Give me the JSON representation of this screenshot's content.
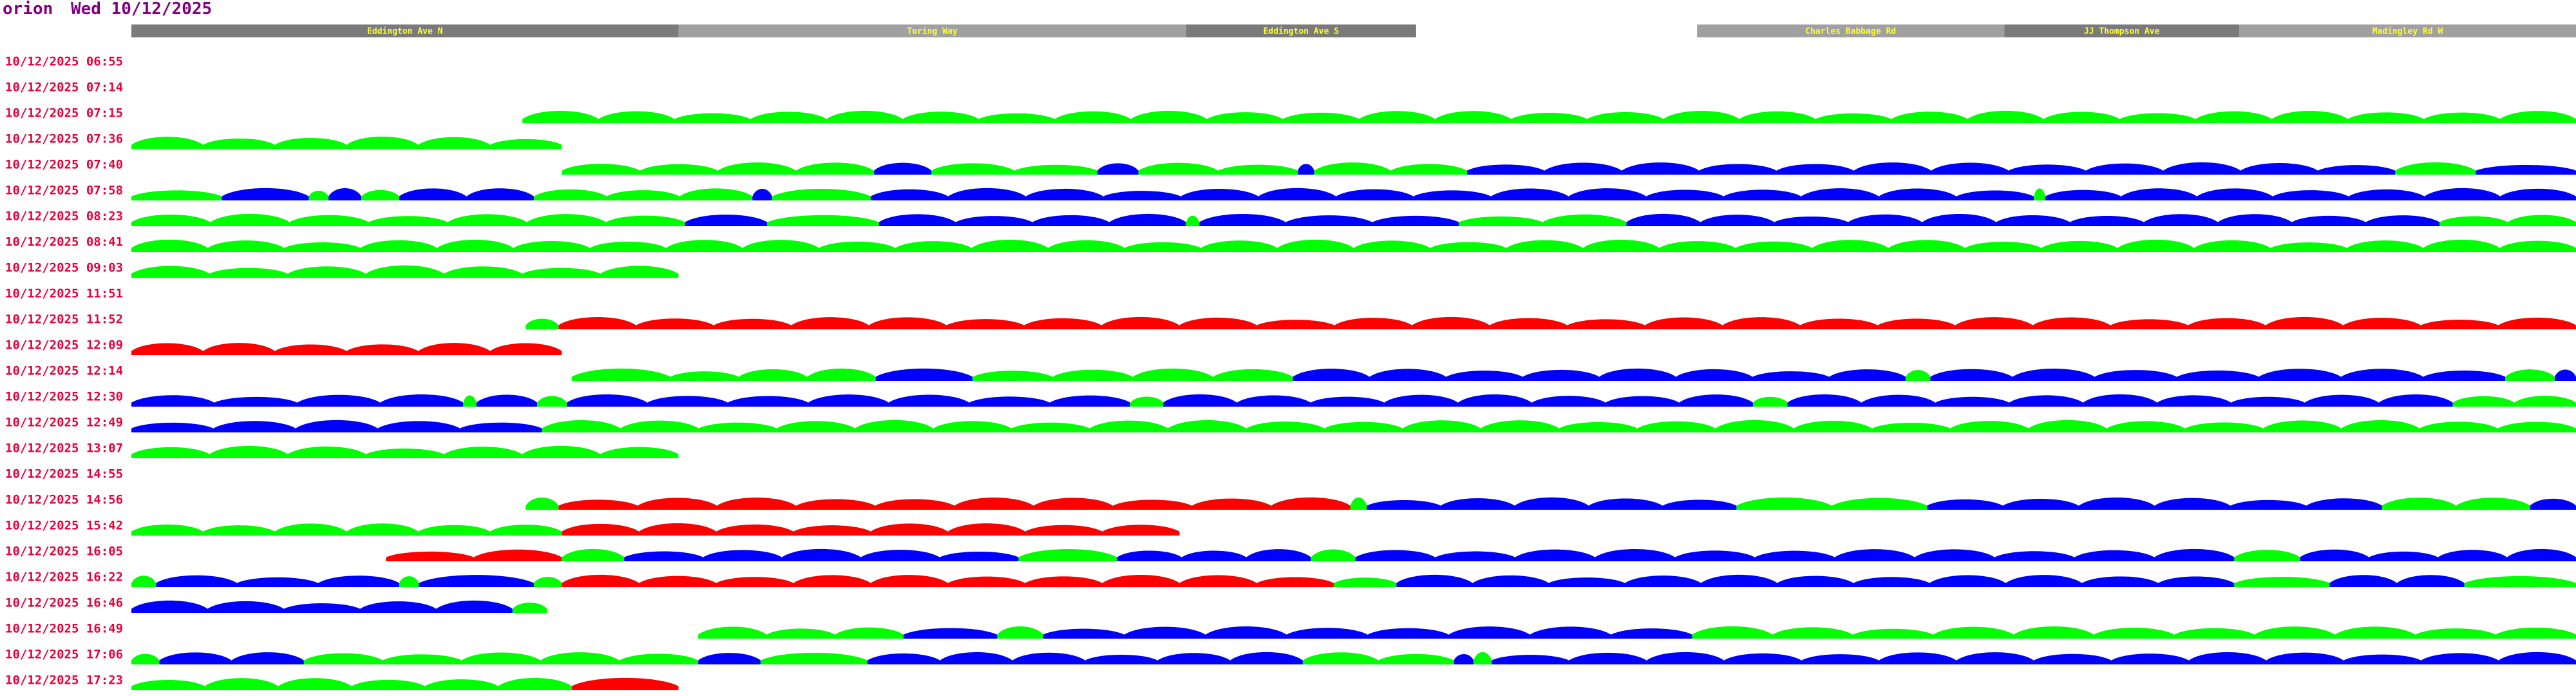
{
  "header": {
    "host": "orion",
    "date": "Wed 10/12/2025"
  },
  "sections": [
    {
      "name": "Eddington Ave N",
      "from": 0,
      "to": 333,
      "color": "#7a7a7a"
    },
    {
      "name": "Turing Way",
      "from": 333,
      "to": 642,
      "color": "#a0a0a0"
    },
    {
      "name": "Eddington Ave S",
      "from": 642,
      "to": 782,
      "color": "#7a7a7a"
    },
    {
      "name": "Charles Babbage Rd",
      "from": 953,
      "to": 1140,
      "color": "#a0a0a0"
    },
    {
      "name": "JJ Thompson Ave",
      "from": 1140,
      "to": 1283,
      "color": "#7a7a7a"
    },
    {
      "name": "Madingley Rd W",
      "from": 1283,
      "to": 1488,
      "color": "#a0a0a0"
    }
  ],
  "rows": [
    {
      "time": "10/12/2025 06:55",
      "segments": []
    },
    {
      "time": "10/12/2025 07:14",
      "segments": []
    },
    {
      "time": "10/12/2025 07:15",
      "segments": [
        {
          "from": 238,
          "to": 1488,
          "color": "#00ff00"
        }
      ]
    },
    {
      "time": "10/12/2025 07:36",
      "segments": [
        {
          "from": 0,
          "to": 262,
          "color": "#00ff00"
        }
      ]
    },
    {
      "time": "10/12/2025 07:40",
      "segments": [
        {
          "from": 262,
          "to": 452,
          "color": "#00ff00"
        },
        {
          "from": 452,
          "to": 487,
          "color": "#0000ff"
        },
        {
          "from": 487,
          "to": 588,
          "color": "#00ff00"
        },
        {
          "from": 588,
          "to": 613,
          "color": "#0000ff"
        },
        {
          "from": 613,
          "to": 710,
          "color": "#00ff00"
        },
        {
          "from": 710,
          "to": 720,
          "color": "#0000ff"
        },
        {
          "from": 720,
          "to": 813,
          "color": "#00ff00"
        },
        {
          "from": 813,
          "to": 1378,
          "color": "#0000ff"
        },
        {
          "from": 1378,
          "to": 1427,
          "color": "#00ff00"
        },
        {
          "from": 1427,
          "to": 1488,
          "color": "#0000ff"
        }
      ]
    },
    {
      "time": "10/12/2025 07:58",
      "segments": [
        {
          "from": 0,
          "to": 55,
          "color": "#00ff00"
        },
        {
          "from": 55,
          "to": 108,
          "color": "#0000ff"
        },
        {
          "from": 108,
          "to": 120,
          "color": "#00ff00"
        },
        {
          "from": 120,
          "to": 140,
          "color": "#0000ff"
        },
        {
          "from": 140,
          "to": 163,
          "color": "#00ff00"
        },
        {
          "from": 163,
          "to": 245,
          "color": "#0000ff"
        },
        {
          "from": 245,
          "to": 378,
          "color": "#00ff00"
        },
        {
          "from": 378,
          "to": 390,
          "color": "#0000ff"
        },
        {
          "from": 390,
          "to": 450,
          "color": "#00ff00"
        },
        {
          "from": 450,
          "to": 1158,
          "color": "#0000ff"
        },
        {
          "from": 1158,
          "to": 1165,
          "color": "#00ff00"
        },
        {
          "from": 1165,
          "to": 1488,
          "color": "#0000ff"
        }
      ]
    },
    {
      "time": "10/12/2025 08:23",
      "segments": [
        {
          "from": 0,
          "to": 337,
          "color": "#00ff00"
        },
        {
          "from": 337,
          "to": 387,
          "color": "#0000ff"
        },
        {
          "from": 387,
          "to": 455,
          "color": "#00ff00"
        },
        {
          "from": 455,
          "to": 642,
          "color": "#0000ff"
        },
        {
          "from": 642,
          "to": 650,
          "color": "#00ff00"
        },
        {
          "from": 650,
          "to": 808,
          "color": "#0000ff"
        },
        {
          "from": 808,
          "to": 910,
          "color": "#00ff00"
        },
        {
          "from": 910,
          "to": 1405,
          "color": "#0000ff"
        },
        {
          "from": 1405,
          "to": 1488,
          "color": "#00ff00"
        }
      ]
    },
    {
      "time": "10/12/2025 08:41",
      "segments": [
        {
          "from": 0,
          "to": 1488,
          "color": "#00ff00"
        }
      ]
    },
    {
      "time": "10/12/2025 09:03",
      "segments": [
        {
          "from": 0,
          "to": 333,
          "color": "#00ff00"
        }
      ]
    },
    {
      "time": "10/12/2025 11:51",
      "segments": []
    },
    {
      "time": "10/12/2025 11:52",
      "segments": [
        {
          "from": 240,
          "to": 260,
          "color": "#00ff00"
        },
        {
          "from": 260,
          "to": 1488,
          "color": "#ff0000"
        }
      ]
    },
    {
      "time": "10/12/2025 12:09",
      "segments": [
        {
          "from": 0,
          "to": 262,
          "color": "#ff0000"
        }
      ]
    },
    {
      "time": "10/12/2025 12:14",
      "segments": [
        {
          "from": 268,
          "to": 328,
          "color": "#00ff00"
        },
        {
          "from": 328,
          "to": 453,
          "color": "#00ff00"
        },
        {
          "from": 453,
          "to": 512,
          "color": "#0000ff"
        },
        {
          "from": 512,
          "to": 707,
          "color": "#00ff00"
        },
        {
          "from": 707,
          "to": 1080,
          "color": "#0000ff"
        },
        {
          "from": 1080,
          "to": 1095,
          "color": "#00ff00"
        },
        {
          "from": 1095,
          "to": 1445,
          "color": "#0000ff"
        },
        {
          "from": 1445,
          "to": 1475,
          "color": "#00ff00"
        },
        {
          "from": 1475,
          "to": 1488,
          "color": "#0000ff"
        }
      ]
    },
    {
      "time": "10/12/2025 12:30",
      "segments": [
        {
          "from": 0,
          "to": 202,
          "color": "#0000ff"
        },
        {
          "from": 202,
          "to": 210,
          "color": "#00ff00"
        },
        {
          "from": 210,
          "to": 247,
          "color": "#0000ff"
        },
        {
          "from": 247,
          "to": 265,
          "color": "#00ff00"
        },
        {
          "from": 265,
          "to": 608,
          "color": "#0000ff"
        },
        {
          "from": 608,
          "to": 628,
          "color": "#00ff00"
        },
        {
          "from": 628,
          "to": 987,
          "color": "#0000ff"
        },
        {
          "from": 987,
          "to": 1008,
          "color": "#00ff00"
        },
        {
          "from": 1008,
          "to": 1413,
          "color": "#0000ff"
        },
        {
          "from": 1413,
          "to": 1488,
          "color": "#00ff00"
        }
      ]
    },
    {
      "time": "10/12/2025 12:49",
      "segments": [
        {
          "from": 0,
          "to": 250,
          "color": "#0000ff"
        },
        {
          "from": 250,
          "to": 1488,
          "color": "#00ff00"
        }
      ]
    },
    {
      "time": "10/12/2025 13:07",
      "segments": [
        {
          "from": 0,
          "to": 333,
          "color": "#00ff00"
        }
      ]
    },
    {
      "time": "10/12/2025 14:55",
      "segments": []
    },
    {
      "time": "10/12/2025 14:56",
      "segments": [
        {
          "from": 240,
          "to": 260,
          "color": "#00ff00"
        },
        {
          "from": 260,
          "to": 742,
          "color": "#ff0000"
        },
        {
          "from": 742,
          "to": 752,
          "color": "#00ff00"
        },
        {
          "from": 752,
          "to": 977,
          "color": "#0000ff"
        },
        {
          "from": 977,
          "to": 1093,
          "color": "#00ff00"
        },
        {
          "from": 1093,
          "to": 1370,
          "color": "#0000ff"
        },
        {
          "from": 1370,
          "to": 1460,
          "color": "#00ff00"
        },
        {
          "from": 1460,
          "to": 1488,
          "color": "#0000ff"
        }
      ]
    },
    {
      "time": "10/12/2025 15:42",
      "segments": [
        {
          "from": 0,
          "to": 262,
          "color": "#00ff00"
        },
        {
          "from": 262,
          "to": 638,
          "color": "#ff0000"
        }
      ]
    },
    {
      "time": "10/12/2025 16:05",
      "segments": [
        {
          "from": 155,
          "to": 262,
          "color": "#ff0000"
        },
        {
          "from": 262,
          "to": 300,
          "color": "#00ff00"
        },
        {
          "from": 300,
          "to": 540,
          "color": "#0000ff"
        },
        {
          "from": 540,
          "to": 600,
          "color": "#00ff00"
        },
        {
          "from": 600,
          "to": 718,
          "color": "#0000ff"
        },
        {
          "from": 718,
          "to": 745,
          "color": "#00ff00"
        },
        {
          "from": 745,
          "to": 1280,
          "color": "#0000ff"
        },
        {
          "from": 1280,
          "to": 1320,
          "color": "#00ff00"
        },
        {
          "from": 1320,
          "to": 1488,
          "color": "#0000ff"
        }
      ]
    },
    {
      "time": "10/12/2025 16:22",
      "segments": [
        {
          "from": 0,
          "to": 15,
          "color": "#00ff00"
        },
        {
          "from": 15,
          "to": 163,
          "color": "#0000ff"
        },
        {
          "from": 163,
          "to": 175,
          "color": "#00ff00"
        },
        {
          "from": 175,
          "to": 245,
          "color": "#0000ff"
        },
        {
          "from": 245,
          "to": 262,
          "color": "#00ff00"
        },
        {
          "from": 262,
          "to": 732,
          "color": "#ff0000"
        },
        {
          "from": 732,
          "to": 770,
          "color": "#00ff00"
        },
        {
          "from": 770,
          "to": 1280,
          "color": "#0000ff"
        },
        {
          "from": 1280,
          "to": 1338,
          "color": "#00ff00"
        },
        {
          "from": 1338,
          "to": 1420,
          "color": "#0000ff"
        },
        {
          "from": 1420,
          "to": 1488,
          "color": "#00ff00"
        }
      ]
    },
    {
      "time": "10/12/2025 16:46",
      "segments": [
        {
          "from": 0,
          "to": 232,
          "color": "#0000ff"
        },
        {
          "from": 232,
          "to": 253,
          "color": "#00ff00"
        }
      ]
    },
    {
      "time": "10/12/2025 16:49",
      "segments": [
        {
          "from": 345,
          "to": 470,
          "color": "#00ff00"
        },
        {
          "from": 470,
          "to": 527,
          "color": "#0000ff"
        },
        {
          "from": 527,
          "to": 555,
          "color": "#00ff00"
        },
        {
          "from": 555,
          "to": 950,
          "color": "#0000ff"
        },
        {
          "from": 950,
          "to": 1488,
          "color": "#00ff00"
        }
      ]
    },
    {
      "time": "10/12/2025 17:06",
      "segments": [
        {
          "from": 0,
          "to": 17,
          "color": "#00ff00"
        },
        {
          "from": 17,
          "to": 105,
          "color": "#0000ff"
        },
        {
          "from": 105,
          "to": 345,
          "color": "#00ff00"
        },
        {
          "from": 345,
          "to": 383,
          "color": "#0000ff"
        },
        {
          "from": 383,
          "to": 448,
          "color": "#00ff00"
        },
        {
          "from": 448,
          "to": 713,
          "color": "#0000ff"
        },
        {
          "from": 713,
          "to": 805,
          "color": "#00ff00"
        },
        {
          "from": 805,
          "to": 817,
          "color": "#0000ff"
        },
        {
          "from": 817,
          "to": 828,
          "color": "#00ff00"
        },
        {
          "from": 828,
          "to": 1488,
          "color": "#0000ff"
        }
      ]
    },
    {
      "time": "10/12/2025 17:23",
      "segments": [
        {
          "from": 0,
          "to": 268,
          "color": "#00ff00"
        },
        {
          "from": 268,
          "to": 333,
          "color": "#ff0000"
        }
      ]
    }
  ]
}
